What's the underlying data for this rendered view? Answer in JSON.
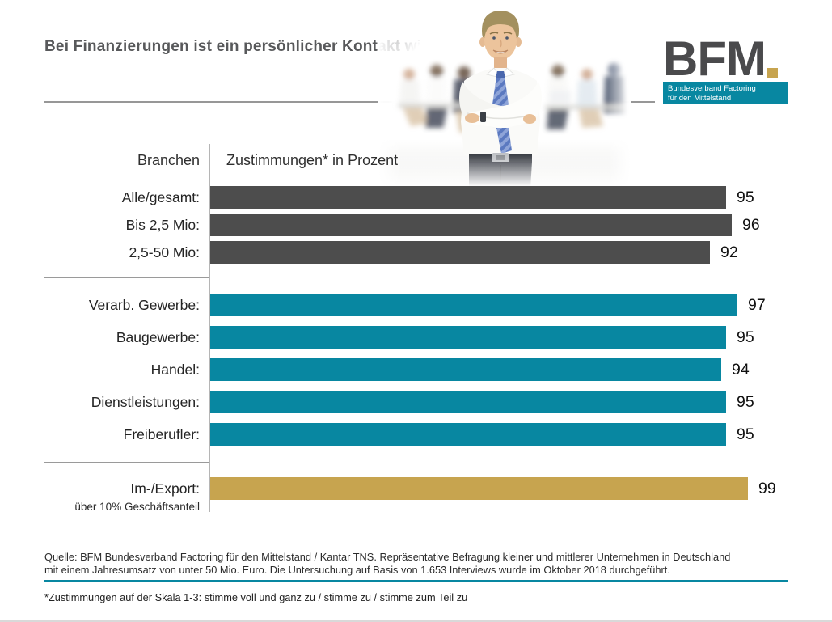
{
  "header": {
    "title": "Bei Finanzierungen ist ein persönlicher Kontakt wichtig.",
    "logo": {
      "acronym": "BFM",
      "org_line1": "Bundesverband Factoring",
      "org_line2": "für den Mittelstand"
    }
  },
  "photo": {
    "description": "businessman-arms-crossed-office"
  },
  "chart": {
    "col_left_header": "Branchen",
    "col_right_header": "Zustimmungen* in Prozent"
  },
  "chart_data": {
    "type": "bar",
    "orientation": "horizontal",
    "title": "Bei Finanzierungen ist ein persönlicher Kontakt wichtig.",
    "xlabel": "Zustimmungen* in Prozent",
    "ylabel": "Branchen",
    "xlim": [
      0,
      100
    ],
    "grid": false,
    "legend": "none",
    "series": [
      {
        "group": "Gesamt/Umsatzklassen",
        "color": "#4d4d4d",
        "rows": [
          {
            "label": "Alle/gesamt:",
            "value": 95
          },
          {
            "label": "Bis 2,5 Mio:",
            "value": 96
          },
          {
            "label": "2,5-50 Mio:",
            "value": 92
          }
        ]
      },
      {
        "group": "Branchen",
        "color": "#0887a1",
        "rows": [
          {
            "label": "Verarb. Gewerbe:",
            "value": 97
          },
          {
            "label": "Baugewerbe:",
            "value": 95
          },
          {
            "label": "Handel:",
            "value": 94
          },
          {
            "label": "Dienstleistungen:",
            "value": 95
          },
          {
            "label": "Freiberufler:",
            "value": 95
          }
        ]
      },
      {
        "group": "Im-/Export",
        "color": "#c7a44f",
        "rows": [
          {
            "label": "Im-/Export:",
            "sublabel": "über 10% Geschäftsanteil",
            "value": 99
          }
        ]
      }
    ]
  },
  "footer": {
    "source_line1": "Quelle: BFM Bundesverband Factoring für den Mittelstand / Kantar TNS. Repräsentative Befragung kleiner und mittlerer Unternehmen in Deutschland",
    "source_line2": "mit einem Jahresumsatz von unter 50 Mio. Euro. Die Untersuchung auf Basis von 1.653 Interviews wurde im Oktober 2018 durchgeführt.",
    "footnote": "*Zustimmungen auf der Skala 1-3: stimme voll und ganz zu / stimme zu / stimme zum Teil zu"
  },
  "colors": {
    "dark_gray_bar": "#4d4d4d",
    "teal_bar": "#0887a1",
    "gold_bar": "#c7a44f",
    "title_text": "#58595b",
    "rule_teal": "#0887a1"
  }
}
